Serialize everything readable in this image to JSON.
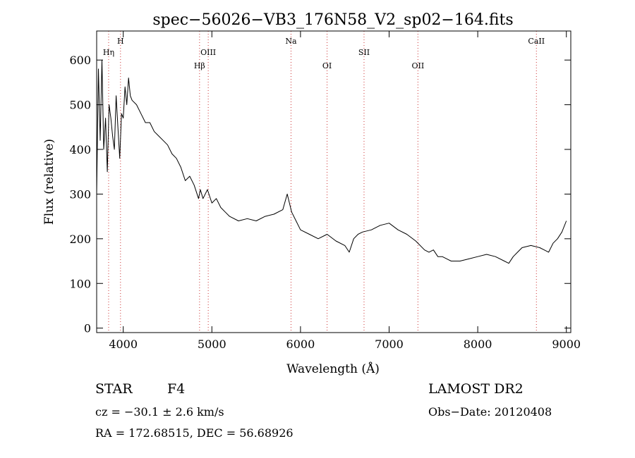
{
  "chart_data": {
    "type": "line",
    "title": "spec−56026−VB3_176N58_V2_sp02−164.fits",
    "xlabel": "Wavelength (Å)",
    "ylabel": "Flux (relative)",
    "xlim": [
      3700,
      9050
    ],
    "ylim": [
      -10,
      665
    ],
    "x_ticks": [
      4000,
      5000,
      6000,
      7000,
      8000,
      9000
    ],
    "y_ticks": [
      0,
      100,
      200,
      300,
      400,
      500,
      600
    ],
    "series": [
      {
        "x": [
          3700,
          3720,
          3740,
          3760,
          3780,
          3800,
          3820,
          3840,
          3860,
          3880,
          3900,
          3920,
          3940,
          3960,
          3980,
          4000,
          4020,
          4040,
          4060,
          4080,
          4100,
          4150,
          4200,
          4250,
          4300,
          4350,
          4400,
          4450,
          4500,
          4550,
          4600,
          4650,
          4700,
          4750,
          4800,
          4850,
          4870,
          4900,
          4950,
          5000,
          5050,
          5100,
          5150,
          5200,
          5300,
          5400,
          5500,
          5600,
          5700,
          5800,
          5850,
          5900,
          5950,
          6000,
          6100,
          6200,
          6300,
          6400,
          6500,
          6550,
          6600,
          6650,
          6700,
          6800,
          6900,
          7000,
          7100,
          7200,
          7300,
          7400,
          7450,
          7500,
          7550,
          7600,
          7700,
          7800,
          7900,
          8000,
          8100,
          8200,
          8300,
          8350,
          8400,
          8450,
          8500,
          8600,
          8700,
          8750,
          8800,
          8850,
          8900,
          8950,
          9000
        ],
        "y": [
          300,
          580,
          420,
          600,
          400,
          470,
          350,
          500,
          470,
          430,
          400,
          520,
          450,
          380,
          480,
          470,
          540,
          500,
          560,
          520,
          510,
          500,
          480,
          460,
          460,
          440,
          430,
          420,
          410,
          390,
          380,
          360,
          330,
          340,
          320,
          290,
          310,
          290,
          310,
          280,
          290,
          270,
          260,
          250,
          240,
          245,
          240,
          250,
          255,
          265,
          300,
          260,
          240,
          220,
          210,
          200,
          210,
          195,
          185,
          170,
          200,
          210,
          215,
          220,
          230,
          235,
          220,
          210,
          195,
          175,
          170,
          175,
          160,
          160,
          150,
          150,
          155,
          160,
          165,
          160,
          150,
          145,
          160,
          170,
          180,
          185,
          180,
          175,
          170,
          190,
          200,
          215,
          240
        ]
      }
    ],
    "lines": [
      {
        "label": "Hη",
        "x": 3835,
        "row": 2
      },
      {
        "label": "H",
        "x": 3969,
        "row": 1
      },
      {
        "label": "Hβ",
        "x": 4861,
        "row": 3
      },
      {
        "label": "OIII",
        "x": 4959,
        "row": 2
      },
      {
        "label": "Na",
        "x": 5893,
        "row": 1
      },
      {
        "label": "OI",
        "x": 6300,
        "row": 3
      },
      {
        "label": "SII",
        "x": 6717,
        "row": 2
      },
      {
        "label": "OII",
        "x": 7325,
        "row": 3
      },
      {
        "label": "CaII",
        "x": 8662,
        "row": 1
      }
    ],
    "grid": false,
    "legend": "none"
  },
  "info": {
    "class": "STAR",
    "subclass": "F4",
    "survey": "LAMOST DR2",
    "cz": "cz = −30.1 ± 2.6 km/s",
    "obs_date": "Obs−Date: 20120408",
    "coords": "RA = 172.68515, DEC =  56.68926"
  }
}
